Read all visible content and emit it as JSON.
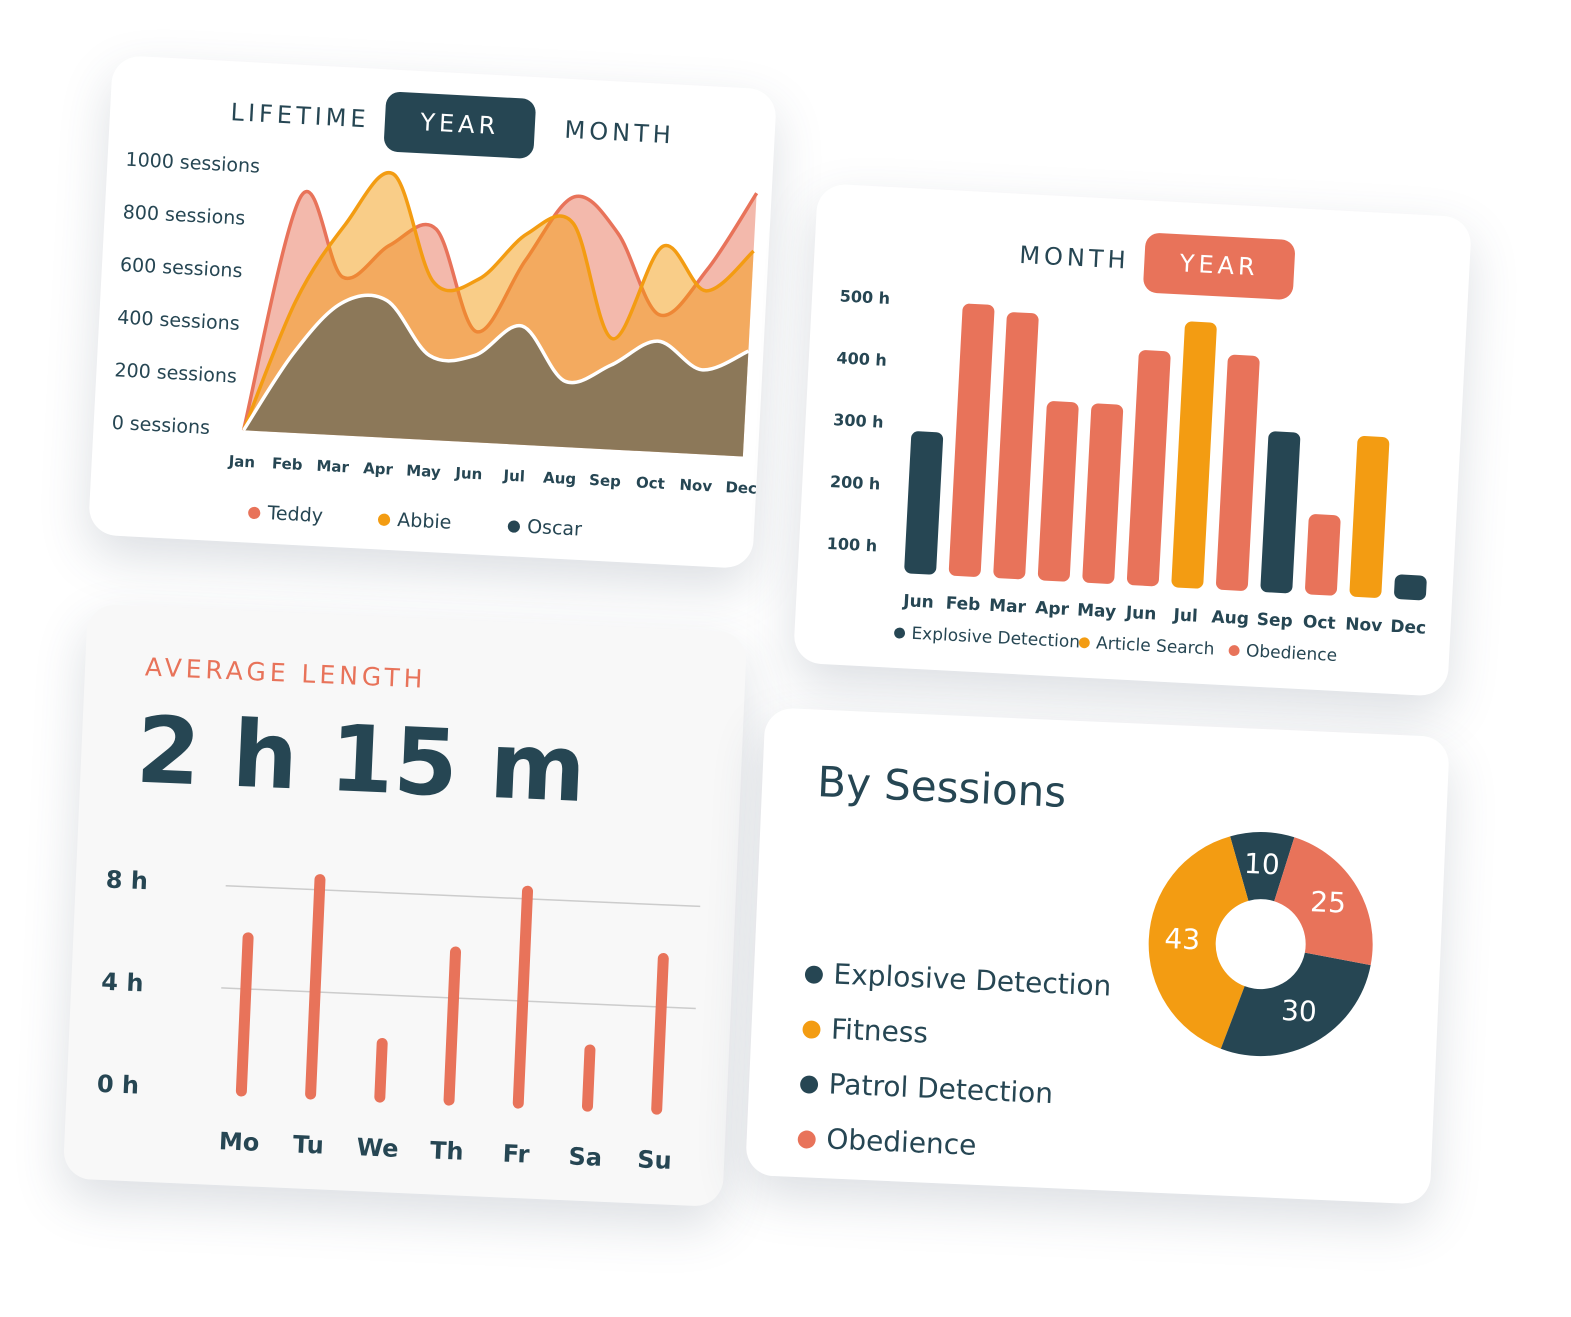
{
  "chart_data": [
    {
      "type": "area",
      "tabs": [
        "LIFETIME",
        "YEAR",
        "MONTH"
      ],
      "active_tab": "YEAR",
      "categories": [
        "Jan",
        "Feb",
        "Mar",
        "Apr",
        "May",
        "Jun",
        "Jul",
        "Aug",
        "Sep",
        "Oct",
        "Nov",
        "Dec"
      ],
      "series": [
        {
          "name": "Teddy",
          "color": "#e8735a",
          "values": [
            0,
            900,
            600,
            730,
            800,
            420,
            700,
            950,
            820,
            520,
            700,
            1000
          ]
        },
        {
          "name": "Abbie",
          "color": "#f39c12",
          "values": [
            0,
            500,
            800,
            1000,
            600,
            620,
            800,
            850,
            420,
            780,
            620,
            780
          ]
        },
        {
          "name": "Oscar",
          "color": "#264653",
          "values": [
            0,
            300,
            500,
            520,
            320,
            330,
            450,
            250,
            320,
            420,
            320,
            400
          ]
        }
      ],
      "ylim": [
        0,
        1100
      ],
      "yticks": [
        {
          "value": 0,
          "label": "0 sessions"
        },
        {
          "value": 200,
          "label": "200 sessions"
        },
        {
          "value": 400,
          "label": "400 sessions"
        },
        {
          "value": 600,
          "label": "600 sessions"
        },
        {
          "value": 800,
          "label": "800 sessions"
        },
        {
          "value": 1000,
          "label": "1000 sessions"
        }
      ]
    },
    {
      "type": "bar",
      "tabs": [
        "MONTH",
        "YEAR"
      ],
      "active_tab": "YEAR",
      "categories": [
        "Jun",
        "Feb",
        "Mar",
        "Apr",
        "May",
        "Jun",
        "Jul",
        "Aug",
        "Sep",
        "Oct",
        "Nov",
        "Dec"
      ],
      "series": [
        {
          "name": "Explosive Detection",
          "color": "#264653",
          "values": [
            290,
            null,
            null,
            null,
            null,
            null,
            null,
            null,
            320,
            null,
            null,
            100
          ]
        },
        {
          "name": "Article Search",
          "color": "#f39c12",
          "values": [
            null,
            null,
            null,
            null,
            null,
            null,
            490,
            null,
            null,
            null,
            320,
            null
          ]
        },
        {
          "name": "Obedience",
          "color": "#e8735a",
          "values": [
            null,
            500,
            490,
            350,
            350,
            440,
            null,
            440,
            null,
            190,
            null,
            null
          ]
        }
      ],
      "ylim": [
        60,
        520
      ],
      "yticks": [
        {
          "value": 100,
          "label": "100 h"
        },
        {
          "value": 200,
          "label": "200 h"
        },
        {
          "value": 300,
          "label": "300 h"
        },
        {
          "value": 400,
          "label": "400 h"
        },
        {
          "value": 500,
          "label": "500 h"
        }
      ]
    },
    {
      "type": "bar",
      "title": "AVERAGE LENGTH",
      "subtitle": "2 h 15 m",
      "categories": [
        "Mo",
        "Tu",
        "We",
        "Th",
        "Fr",
        "Sa",
        "Su"
      ],
      "values": [
        6,
        8.4,
        2.1,
        5.8,
        8.3,
        2.2,
        5.9
      ],
      "color": "#e8735a",
      "ylim": [
        0,
        9
      ],
      "yticks": [
        {
          "value": 0,
          "label": "0 h"
        },
        {
          "value": 4,
          "label": "4 h"
        },
        {
          "value": 8,
          "label": "8 h"
        }
      ],
      "grid": true
    },
    {
      "type": "pie",
      "title": "By Sessions",
      "donut": true,
      "categories": [
        "Explosive Detection",
        "Fitness",
        "Patrol Detection",
        "Obedience"
      ],
      "values": [
        10,
        43,
        30,
        25
      ],
      "colors": [
        "#264653",
        "#f39c12",
        "#264653",
        "#e8735a"
      ]
    }
  ]
}
